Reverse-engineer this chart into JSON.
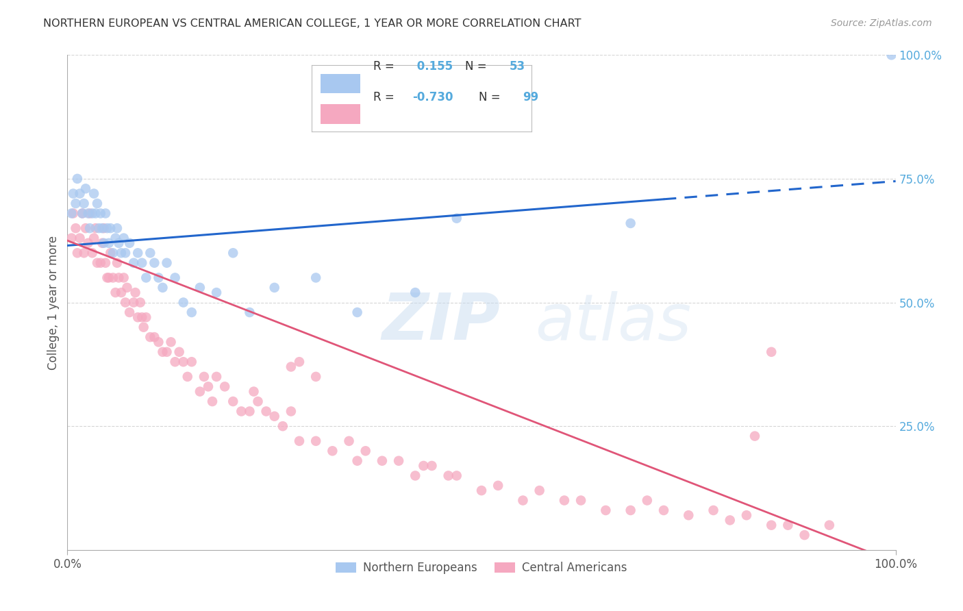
{
  "title": "NORTHERN EUROPEAN VS CENTRAL AMERICAN COLLEGE, 1 YEAR OR MORE CORRELATION CHART",
  "source": "Source: ZipAtlas.com",
  "ylabel": "College, 1 year or more",
  "legend_labels": [
    "Northern Europeans",
    "Central Americans"
  ],
  "blue_R": "0.155",
  "blue_N": "53",
  "pink_R": "-0.730",
  "pink_N": "99",
  "blue_color": "#A8C8F0",
  "pink_color": "#F5A8C0",
  "blue_line_color": "#2266CC",
  "pink_line_color": "#E05578",
  "title_color": "#333333",
  "source_color": "#999999",
  "right_label_color": "#55AADD",
  "grid_color": "#CCCCCC",
  "background_color": "#FFFFFF",
  "watermark_color": "#C8DCF0",
  "blue_intercept": 0.615,
  "blue_slope": 0.13,
  "pink_intercept": 0.625,
  "pink_slope": -0.65,
  "blue_scatter_x": [
    0.005,
    0.007,
    0.01,
    0.012,
    0.015,
    0.018,
    0.02,
    0.022,
    0.025,
    0.027,
    0.03,
    0.032,
    0.034,
    0.036,
    0.038,
    0.04,
    0.042,
    0.044,
    0.046,
    0.048,
    0.05,
    0.052,
    0.055,
    0.058,
    0.06,
    0.062,
    0.065,
    0.068,
    0.07,
    0.075,
    0.08,
    0.085,
    0.09,
    0.095,
    0.1,
    0.105,
    0.11,
    0.115,
    0.12,
    0.13,
    0.14,
    0.15,
    0.16,
    0.18,
    0.2,
    0.22,
    0.25,
    0.3,
    0.35,
    0.42,
    0.47,
    0.68,
    0.995
  ],
  "blue_scatter_y": [
    0.68,
    0.72,
    0.7,
    0.75,
    0.72,
    0.68,
    0.7,
    0.73,
    0.68,
    0.65,
    0.68,
    0.72,
    0.68,
    0.7,
    0.65,
    0.68,
    0.65,
    0.62,
    0.68,
    0.65,
    0.62,
    0.65,
    0.6,
    0.63,
    0.65,
    0.62,
    0.6,
    0.63,
    0.6,
    0.62,
    0.58,
    0.6,
    0.58,
    0.55,
    0.6,
    0.58,
    0.55,
    0.53,
    0.58,
    0.55,
    0.5,
    0.48,
    0.53,
    0.52,
    0.6,
    0.48,
    0.53,
    0.55,
    0.48,
    0.52,
    0.67,
    0.66,
    1.0
  ],
  "pink_scatter_x": [
    0.005,
    0.007,
    0.01,
    0.012,
    0.015,
    0.018,
    0.02,
    0.022,
    0.025,
    0.027,
    0.03,
    0.032,
    0.034,
    0.036,
    0.04,
    0.042,
    0.044,
    0.046,
    0.048,
    0.05,
    0.052,
    0.055,
    0.058,
    0.06,
    0.062,
    0.065,
    0.068,
    0.07,
    0.072,
    0.075,
    0.08,
    0.082,
    0.085,
    0.088,
    0.09,
    0.092,
    0.095,
    0.1,
    0.105,
    0.11,
    0.115,
    0.12,
    0.125,
    0.13,
    0.135,
    0.14,
    0.145,
    0.15,
    0.16,
    0.165,
    0.17,
    0.175,
    0.18,
    0.19,
    0.2,
    0.21,
    0.22,
    0.225,
    0.23,
    0.24,
    0.25,
    0.26,
    0.27,
    0.28,
    0.3,
    0.32,
    0.34,
    0.35,
    0.36,
    0.38,
    0.4,
    0.42,
    0.43,
    0.44,
    0.46,
    0.47,
    0.5,
    0.52,
    0.55,
    0.57,
    0.6,
    0.62,
    0.65,
    0.68,
    0.7,
    0.72,
    0.75,
    0.78,
    0.8,
    0.82,
    0.85,
    0.87,
    0.89,
    0.92,
    0.27,
    0.28,
    0.3,
    0.83,
    0.85
  ],
  "pink_scatter_y": [
    0.63,
    0.68,
    0.65,
    0.6,
    0.63,
    0.68,
    0.6,
    0.65,
    0.62,
    0.68,
    0.6,
    0.63,
    0.65,
    0.58,
    0.58,
    0.62,
    0.65,
    0.58,
    0.55,
    0.55,
    0.6,
    0.55,
    0.52,
    0.58,
    0.55,
    0.52,
    0.55,
    0.5,
    0.53,
    0.48,
    0.5,
    0.52,
    0.47,
    0.5,
    0.47,
    0.45,
    0.47,
    0.43,
    0.43,
    0.42,
    0.4,
    0.4,
    0.42,
    0.38,
    0.4,
    0.38,
    0.35,
    0.38,
    0.32,
    0.35,
    0.33,
    0.3,
    0.35,
    0.33,
    0.3,
    0.28,
    0.28,
    0.32,
    0.3,
    0.28,
    0.27,
    0.25,
    0.28,
    0.22,
    0.22,
    0.2,
    0.22,
    0.18,
    0.2,
    0.18,
    0.18,
    0.15,
    0.17,
    0.17,
    0.15,
    0.15,
    0.12,
    0.13,
    0.1,
    0.12,
    0.1,
    0.1,
    0.08,
    0.08,
    0.1,
    0.08,
    0.07,
    0.08,
    0.06,
    0.07,
    0.05,
    0.05,
    0.03,
    0.05,
    0.37,
    0.38,
    0.35,
    0.23,
    0.4
  ]
}
